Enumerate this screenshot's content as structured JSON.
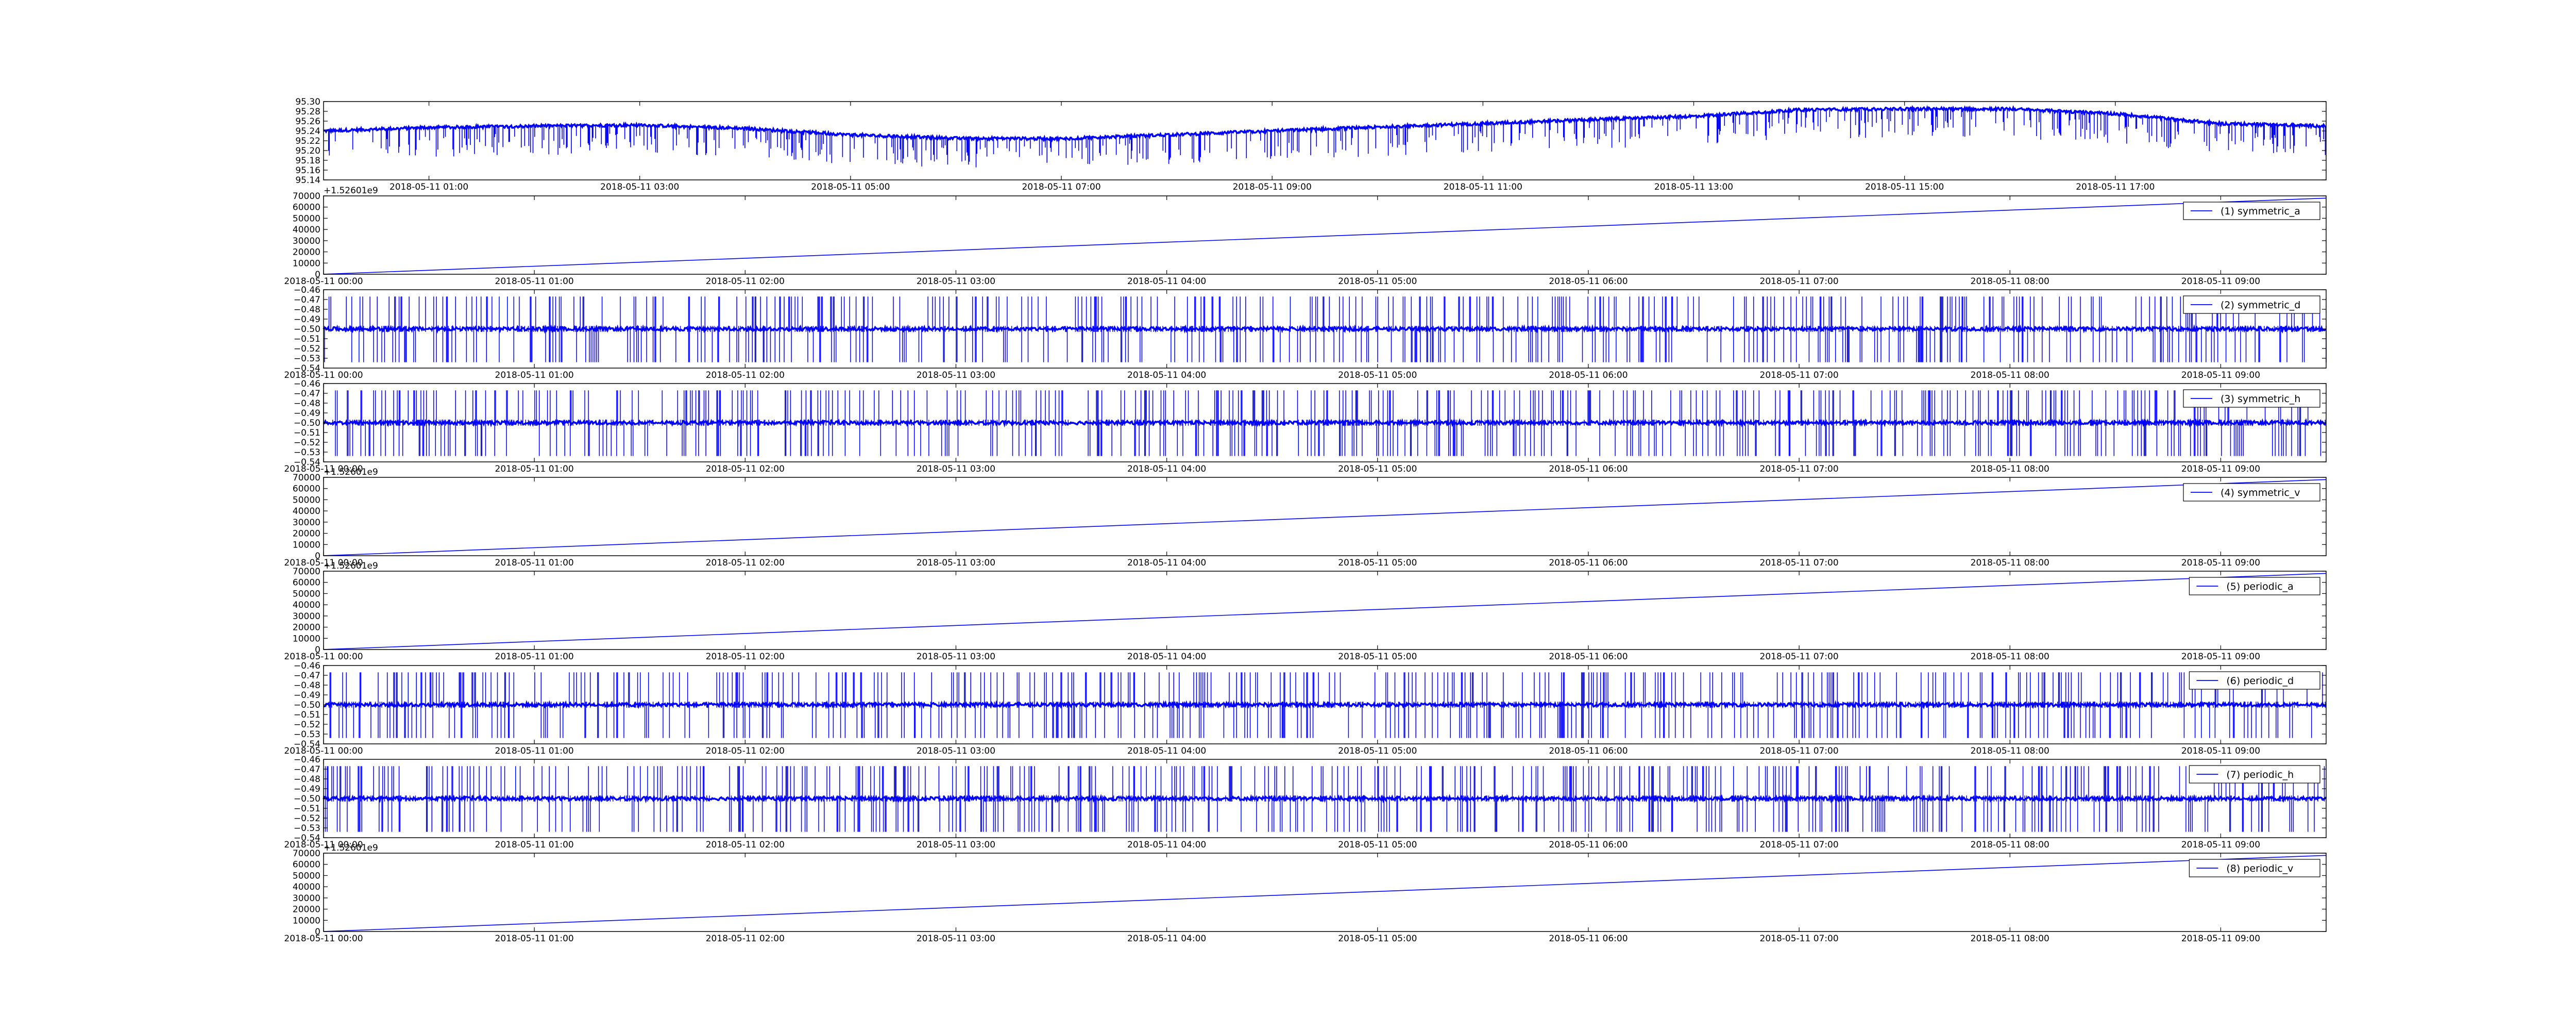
{
  "figure": {
    "line_color": "#0000ff",
    "axes_color": "#000000",
    "background": "#ffffff"
  },
  "chart_data": [
    {
      "type": "line",
      "title": "",
      "xlabel": "",
      "ylabel": "",
      "grid": false,
      "legend": false,
      "offset_text": "",
      "yticks": [
        "95.14",
        "95.16",
        "95.18",
        "95.20",
        "95.22",
        "95.24",
        "95.26",
        "95.28",
        "95.30"
      ],
      "ylim": [
        95.14,
        95.3
      ],
      "xticks": [
        "2018-05-11 01:00",
        "2018-05-11 03:00",
        "2018-05-11 05:00",
        "2018-05-11 07:00",
        "2018-05-11 09:00",
        "2018-05-11 11:00",
        "2018-05-11 13:00",
        "2018-05-11 15:00",
        "2018-05-11 17:00"
      ],
      "xlim": [
        "2018-05-11 00:00",
        "2018-05-11 19:00"
      ],
      "series": [
        {
          "style": "noisy-with-downward-spikes",
          "x": [
            "2018-05-11 00:00",
            "2018-05-11 01:00",
            "2018-05-11 02:00",
            "2018-05-11 03:00",
            "2018-05-11 04:00",
            "2018-05-11 05:00",
            "2018-05-11 06:00",
            "2018-05-11 07:00",
            "2018-05-11 08:00",
            "2018-05-11 09:00",
            "2018-05-11 10:00",
            "2018-05-11 11:00",
            "2018-05-11 12:00",
            "2018-05-11 13:00",
            "2018-05-11 14:00",
            "2018-05-11 15:00",
            "2018-05-11 16:00",
            "2018-05-11 17:00",
            "2018-05-11 18:00",
            "2018-05-11 19:00"
          ],
          "y": [
            95.24,
            95.247,
            95.25,
            95.252,
            95.245,
            95.232,
            95.225,
            95.224,
            95.232,
            95.24,
            95.248,
            95.255,
            95.263,
            95.27,
            95.283,
            95.285,
            95.285,
            95.275,
            95.255,
            95.25
          ]
        }
      ]
    },
    {
      "type": "line",
      "title": "",
      "offset_text": "+1.52601e9",
      "yticks": [
        "0",
        "10000",
        "20000",
        "30000",
        "40000",
        "50000",
        "60000",
        "70000"
      ],
      "ylim": [
        0,
        70000
      ],
      "xticks": [
        "2018-05-11 00:00",
        "2018-05-11 01:00",
        "2018-05-11 02:00",
        "2018-05-11 03:00",
        "2018-05-11 04:00",
        "2018-05-11 05:00",
        "2018-05-11 06:00",
        "2018-05-11 07:00",
        "2018-05-11 08:00",
        "2018-05-11 09:00"
      ],
      "xlim": [
        "2018-05-11 00:00",
        "2018-05-11 09:30"
      ],
      "legend": true,
      "legend_position": "top-right",
      "series": [
        {
          "name": "(1) symmetric_a",
          "style": "linear",
          "x": [
            "2018-05-11 00:00",
            "2018-05-11 09:30"
          ],
          "y": [
            0,
            68000
          ]
        }
      ]
    },
    {
      "type": "line",
      "title": "",
      "offset_text": "",
      "yticks": [
        "−0.54",
        "−0.53",
        "−0.52",
        "−0.51",
        "−0.50",
        "−0.49",
        "−0.48",
        "−0.47",
        "−0.46"
      ],
      "ylim": [
        -0.54,
        -0.46
      ],
      "xticks": [
        "2018-05-11 00:00",
        "2018-05-11 01:00",
        "2018-05-11 02:00",
        "2018-05-11 03:00",
        "2018-05-11 04:00",
        "2018-05-11 05:00",
        "2018-05-11 06:00",
        "2018-05-11 07:00",
        "2018-05-11 08:00",
        "2018-05-11 09:00"
      ],
      "xlim": [
        "2018-05-11 00:00",
        "2018-05-11 09:30"
      ],
      "legend": true,
      "legend_position": "top-right",
      "series": [
        {
          "name": "(2) symmetric_d",
          "style": "noisy-with-bidirectional-spikes",
          "center": -0.5,
          "spike_min": -0.534,
          "spike_max": -0.467
        }
      ]
    },
    {
      "type": "line",
      "title": "",
      "offset_text": "",
      "yticks": [
        "−0.54",
        "−0.53",
        "−0.52",
        "−0.51",
        "−0.50",
        "−0.49",
        "−0.48",
        "−0.47",
        "−0.46"
      ],
      "ylim": [
        -0.54,
        -0.46
      ],
      "xticks": [
        "2018-05-11 00:00",
        "2018-05-11 01:00",
        "2018-05-11 02:00",
        "2018-05-11 03:00",
        "2018-05-11 04:00",
        "2018-05-11 05:00",
        "2018-05-11 06:00",
        "2018-05-11 07:00",
        "2018-05-11 08:00",
        "2018-05-11 09:00"
      ],
      "xlim": [
        "2018-05-11 00:00",
        "2018-05-11 09:30"
      ],
      "legend": true,
      "legend_position": "top-right",
      "series": [
        {
          "name": "(3) symmetric_h",
          "style": "noisy-with-bidirectional-spikes",
          "center": -0.5,
          "spike_min": -0.534,
          "spike_max": -0.467
        }
      ]
    },
    {
      "type": "line",
      "title": "",
      "offset_text": "+1.52601e9",
      "yticks": [
        "0",
        "10000",
        "20000",
        "30000",
        "40000",
        "50000",
        "60000",
        "70000"
      ],
      "ylim": [
        0,
        70000
      ],
      "xticks": [
        "2018-05-11 00:00",
        "2018-05-11 01:00",
        "2018-05-11 02:00",
        "2018-05-11 03:00",
        "2018-05-11 04:00",
        "2018-05-11 05:00",
        "2018-05-11 06:00",
        "2018-05-11 07:00",
        "2018-05-11 08:00",
        "2018-05-11 09:00"
      ],
      "xlim": [
        "2018-05-11 00:00",
        "2018-05-11 09:30"
      ],
      "legend": true,
      "legend_position": "top-right",
      "series": [
        {
          "name": "(4) symmetric_v",
          "style": "linear",
          "x": [
            "2018-05-11 00:00",
            "2018-05-11 09:30"
          ],
          "y": [
            0,
            68000
          ]
        }
      ]
    },
    {
      "type": "line",
      "title": "",
      "offset_text": "+1.52601e9",
      "yticks": [
        "0",
        "10000",
        "20000",
        "30000",
        "40000",
        "50000",
        "60000",
        "70000"
      ],
      "ylim": [
        0,
        70000
      ],
      "xticks": [
        "2018-05-11 00:00",
        "2018-05-11 01:00",
        "2018-05-11 02:00",
        "2018-05-11 03:00",
        "2018-05-11 04:00",
        "2018-05-11 05:00",
        "2018-05-11 06:00",
        "2018-05-11 07:00",
        "2018-05-11 08:00",
        "2018-05-11 09:00"
      ],
      "xlim": [
        "2018-05-11 00:00",
        "2018-05-11 09:30"
      ],
      "legend": true,
      "legend_position": "top-right",
      "series": [
        {
          "name": "(5) periodic_a",
          "style": "linear",
          "x": [
            "2018-05-11 00:00",
            "2018-05-11 09:30"
          ],
          "y": [
            0,
            68000
          ]
        }
      ]
    },
    {
      "type": "line",
      "title": "",
      "offset_text": "",
      "yticks": [
        "−0.54",
        "−0.53",
        "−0.52",
        "−0.51",
        "−0.50",
        "−0.49",
        "−0.48",
        "−0.47",
        "−0.46"
      ],
      "ylim": [
        -0.54,
        -0.46
      ],
      "xticks": [
        "2018-05-11 00:00",
        "2018-05-11 01:00",
        "2018-05-11 02:00",
        "2018-05-11 03:00",
        "2018-05-11 04:00",
        "2018-05-11 05:00",
        "2018-05-11 06:00",
        "2018-05-11 07:00",
        "2018-05-11 08:00",
        "2018-05-11 09:00"
      ],
      "xlim": [
        "2018-05-11 00:00",
        "2018-05-11 09:30"
      ],
      "legend": true,
      "legend_position": "top-right",
      "series": [
        {
          "name": "(6) periodic_d",
          "style": "noisy-with-bidirectional-spikes",
          "center": -0.5,
          "spike_min": -0.534,
          "spike_max": -0.467
        }
      ]
    },
    {
      "type": "line",
      "title": "",
      "offset_text": "",
      "yticks": [
        "−0.54",
        "−0.53",
        "−0.52",
        "−0.51",
        "−0.50",
        "−0.49",
        "−0.48",
        "−0.47",
        "−0.46"
      ],
      "ylim": [
        -0.54,
        -0.46
      ],
      "xticks": [
        "2018-05-11 00:00",
        "2018-05-11 01:00",
        "2018-05-11 02:00",
        "2018-05-11 03:00",
        "2018-05-11 04:00",
        "2018-05-11 05:00",
        "2018-05-11 06:00",
        "2018-05-11 07:00",
        "2018-05-11 08:00",
        "2018-05-11 09:00"
      ],
      "xlim": [
        "2018-05-11 00:00",
        "2018-05-11 09:30"
      ],
      "legend": true,
      "legend_position": "top-right",
      "series": [
        {
          "name": "(7) periodic_h",
          "style": "noisy-with-bidirectional-spikes",
          "center": -0.5,
          "spike_min": -0.534,
          "spike_max": -0.467
        }
      ]
    },
    {
      "type": "line",
      "title": "",
      "offset_text": "+1.52601e9",
      "yticks": [
        "0",
        "10000",
        "20000",
        "30000",
        "40000",
        "50000",
        "60000",
        "70000"
      ],
      "ylim": [
        0,
        70000
      ],
      "xticks": [
        "2018-05-11 00:00",
        "2018-05-11 01:00",
        "2018-05-11 02:00",
        "2018-05-11 03:00",
        "2018-05-11 04:00",
        "2018-05-11 05:00",
        "2018-05-11 06:00",
        "2018-05-11 07:00",
        "2018-05-11 08:00",
        "2018-05-11 09:00"
      ],
      "xlim": [
        "2018-05-11 00:00",
        "2018-05-11 09:30"
      ],
      "legend": true,
      "legend_position": "top-right",
      "series": [
        {
          "name": "(8) periodic_v",
          "style": "linear",
          "x": [
            "2018-05-11 00:00",
            "2018-05-11 09:30"
          ],
          "y": [
            0,
            68000
          ]
        }
      ]
    }
  ]
}
